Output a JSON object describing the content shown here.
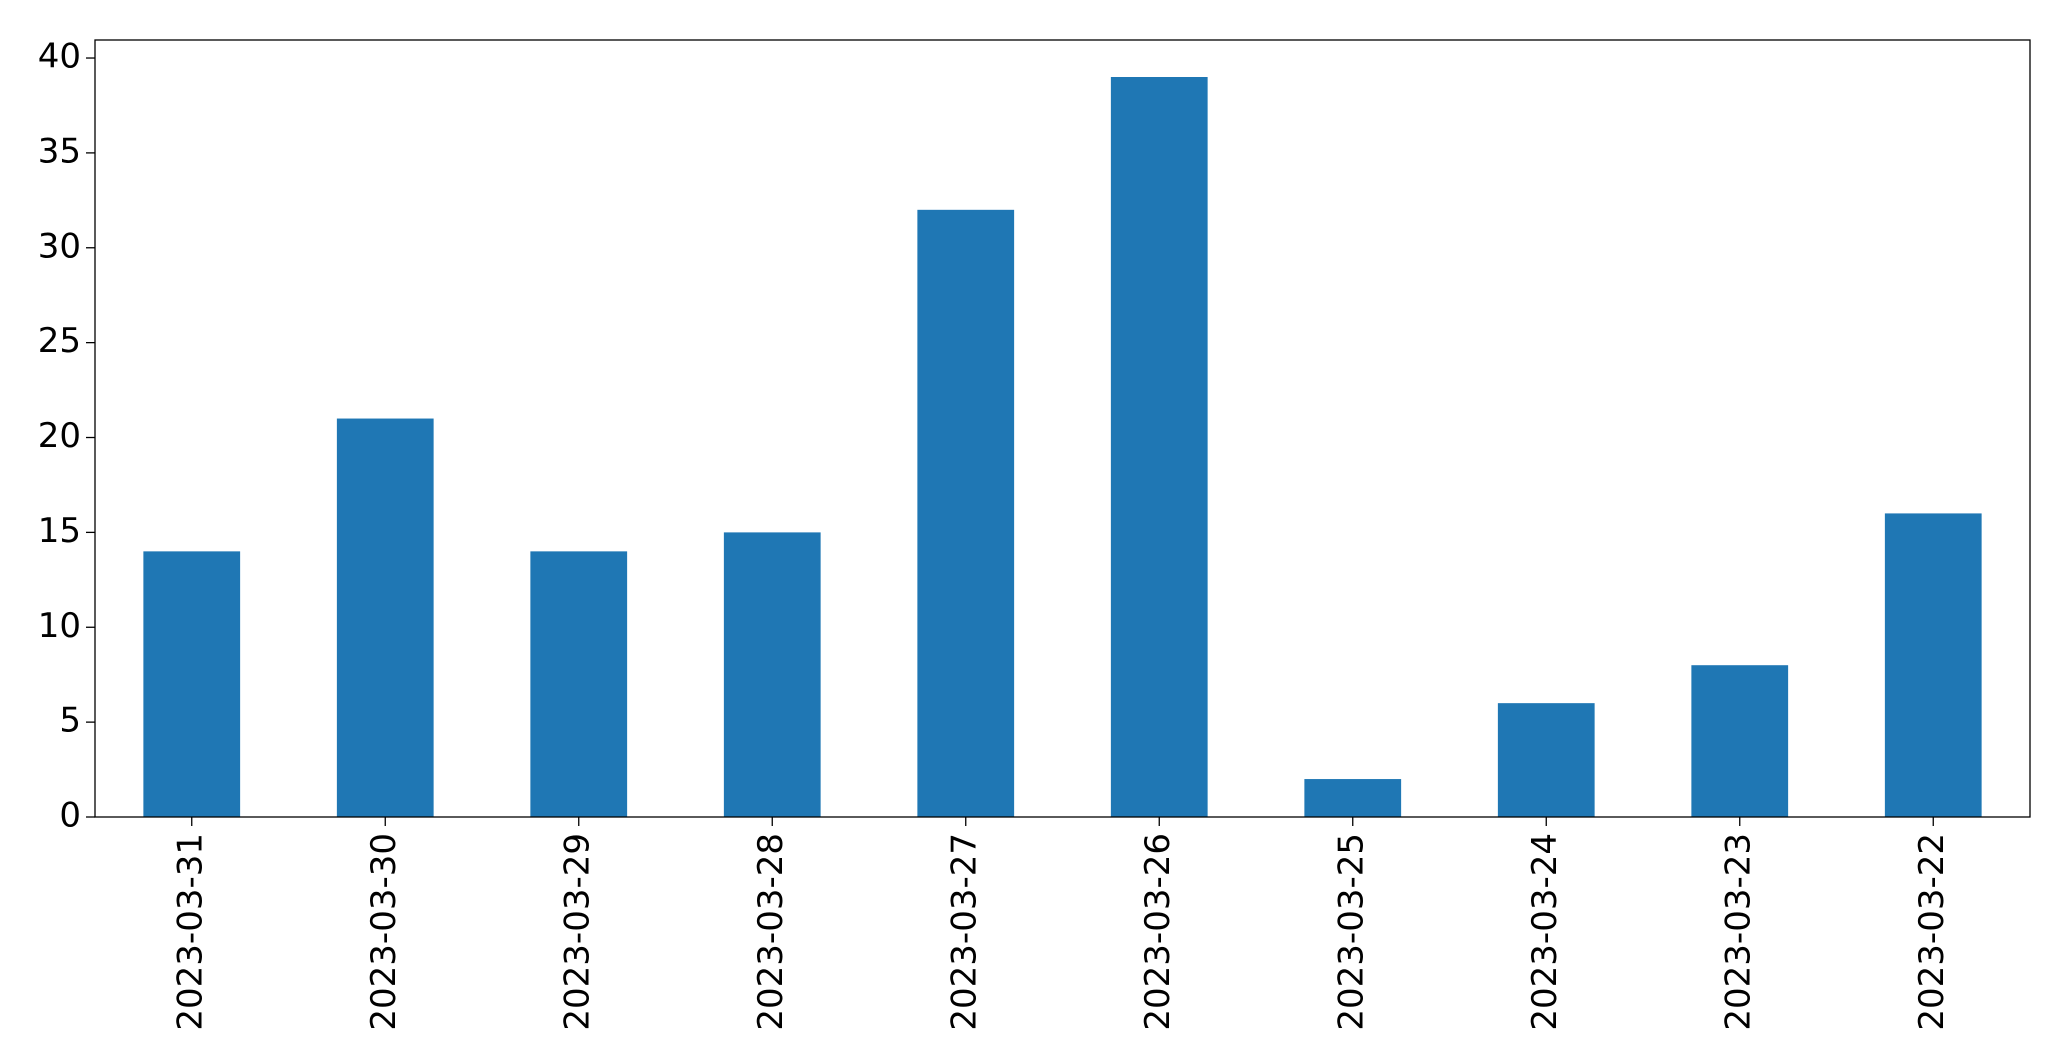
{
  "chart_data": {
    "type": "bar",
    "categories": [
      "2023-03-31",
      "2023-03-30",
      "2023-03-29",
      "2023-03-28",
      "2023-03-27",
      "2023-03-26",
      "2023-03-25",
      "2023-03-24",
      "2023-03-23",
      "2023-03-22"
    ],
    "values": [
      14,
      21,
      14,
      15,
      32,
      39,
      2,
      6,
      8,
      16
    ],
    "color": "#1f77b4",
    "ylim": [
      0,
      40.95
    ],
    "yticks": [
      0,
      5,
      10,
      15,
      20,
      25,
      30,
      35,
      40
    ],
    "grid": false
  }
}
